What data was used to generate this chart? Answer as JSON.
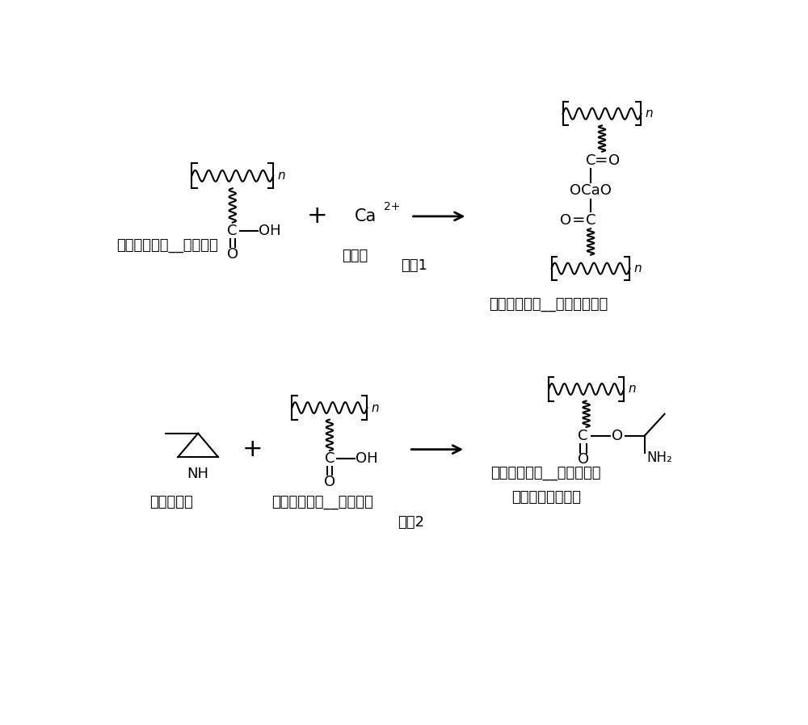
{
  "background_color": "#ffffff",
  "text_color": "#000000",
  "label1_left": "聚丙烯酸链段__含有羧基",
  "label1_mid": "钙离子",
  "label1_right": "聚丙烯酸链段__被钙离子交联",
  "label2_left1": "甲基氮丙啶",
  "label2_left2": "聚丙烯酸链段__含有羧基",
  "label2_right1": "聚丙烯酸链段__羧基被封端",
  "label2_right2": "无法与钙离子反应",
  "reaction1": "反应1",
  "reaction2": "反应2",
  "font_size_label": 13,
  "font_size_chem": 13,
  "font_size_small": 11
}
